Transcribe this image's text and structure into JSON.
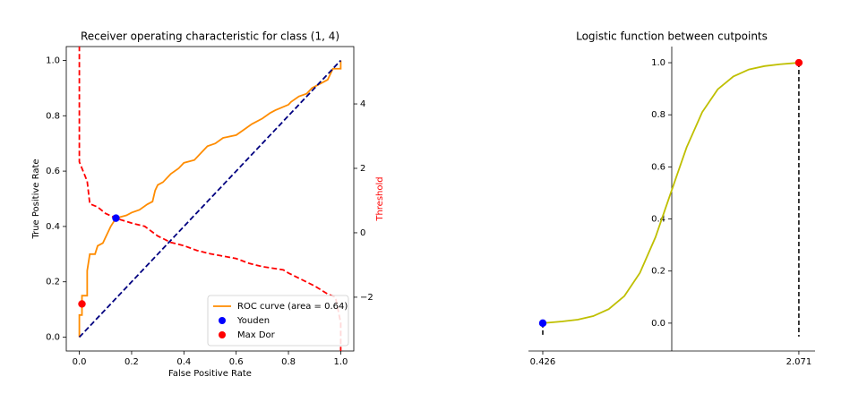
{
  "chart_data": [
    {
      "type": "line",
      "title": "Receiver operating characteristic for class (1, 4)",
      "xlabel": "False Positive Rate",
      "ylabel": "True Positive Rate",
      "y2label": "Threshold",
      "y2label_color": "#ff0000",
      "xlim": [
        -0.05,
        1.05
      ],
      "ylim": [
        -0.05,
        1.05
      ],
      "y2lim": [
        -3.67,
        5.78
      ],
      "xticks": [
        {
          "value": 0,
          "label": "0.0"
        },
        0.2,
        0.4,
        0.6,
        0.8,
        {
          "value": 1,
          "label": "1.0"
        }
      ],
      "yticks": [
        {
          "value": 0,
          "label": "0.0"
        },
        0.2,
        0.4,
        0.6,
        0.8,
        {
          "value": 1,
          "label": "1.0"
        }
      ],
      "y2ticks": [
        {
          "value": -2,
          "label": "−2"
        },
        0,
        2,
        4
      ],
      "legend": "lower right",
      "series": [
        {
          "name": "ROC curve (area = 0.64)",
          "color": "#ff8c00",
          "x": [
            0,
            0,
            0.01,
            0.01,
            0.03,
            0.03,
            0.04,
            0.06,
            0.07,
            0.09,
            0.1,
            0.11,
            0.12,
            0.14,
            0.18,
            0.2,
            0.23,
            0.26,
            0.28,
            0.29,
            0.3,
            0.32,
            0.35,
            0.38,
            0.4,
            0.44,
            0.46,
            0.49,
            0.52,
            0.55,
            0.6,
            0.63,
            0.66,
            0.7,
            0.73,
            0.75,
            0.8,
            0.81,
            0.84,
            0.87,
            0.89,
            0.93,
            0.95,
            0.97,
            1,
            1
          ],
          "values": [
            0,
            0.08,
            0.08,
            0.15,
            0.15,
            0.24,
            0.3,
            0.3,
            0.33,
            0.34,
            0.36,
            0.38,
            0.4,
            0.43,
            0.44,
            0.45,
            0.46,
            0.48,
            0.49,
            0.53,
            0.55,
            0.56,
            0.59,
            0.61,
            0.63,
            0.64,
            0.66,
            0.69,
            0.7,
            0.72,
            0.73,
            0.75,
            0.77,
            0.79,
            0.81,
            0.82,
            0.84,
            0.85,
            0.87,
            0.88,
            0.9,
            0.92,
            0.93,
            0.97,
            0.97,
            1
          ]
        },
        {
          "color": "#000080",
          "dashed": true,
          "x": [
            0,
            1
          ],
          "values": [
            0,
            1
          ]
        },
        {
          "color": "#ff0000",
          "dashed": true,
          "axis": "y2",
          "x": [
            0,
            0,
            0.01,
            0.03,
            0.04,
            0.07,
            0.1,
            0.14,
            0.2,
            0.25,
            0.3,
            0.35,
            0.4,
            0.45,
            0.5,
            0.6,
            0.65,
            0.7,
            0.78,
            0.8,
            0.85,
            0.9,
            0.95,
            0.98,
            1,
            1
          ],
          "values": [
            5.8,
            2.2,
            2,
            1.6,
            0.9,
            0.8,
            0.6,
            0.45,
            0.3,
            0.2,
            -0.1,
            -0.3,
            -0.4,
            -0.55,
            -0.65,
            -0.8,
            -0.95,
            -1.05,
            -1.15,
            -1.25,
            -1.45,
            -1.65,
            -1.9,
            -2,
            -2.8,
            -3.7
          ]
        },
        {
          "name": "Youden",
          "color": "#0000ff",
          "kind": "scatter",
          "x": [
            0.14
          ],
          "values": [
            0.43
          ]
        },
        {
          "name": "Max Dor",
          "color": "#ff0000",
          "kind": "scatter",
          "x": [
            0.01
          ],
          "values": [
            0.12
          ]
        }
      ]
    },
    {
      "type": "line",
      "title": "Logistic function between cutpoints",
      "xlim": [
        0.334,
        2.175
      ],
      "ylim": [
        -0.107,
        1.062
      ],
      "xticks": [
        0.426,
        2.071
      ],
      "yticks": [
        {
          "value": 0,
          "label": "0.0"
        },
        0.2,
        0.4,
        0.6,
        0.8,
        {
          "value": 1,
          "label": "1.0"
        }
      ],
      "series": [
        {
          "color": "#bfbf00",
          "x": [
            0.426,
            0.55,
            0.65,
            0.75,
            0.85,
            0.95,
            1.05,
            1.15,
            1.25,
            1.35,
            1.45,
            1.55,
            1.65,
            1.75,
            1.85,
            1.95,
            2.071
          ],
          "values": [
            0,
            0.0065,
            0.0133,
            0.0269,
            0.054,
            0.104,
            0.193,
            0.33,
            0.503,
            0.675,
            0.81,
            0.898,
            0.947,
            0.974,
            0.987,
            0.994,
            1
          ]
        },
        {
          "color": "#0000ff",
          "kind": "scatter",
          "stem": true,
          "x": [
            0.426
          ],
          "values": [
            0
          ]
        },
        {
          "color": "#ff0000",
          "kind": "scatter",
          "stem": true,
          "x": [
            2.071
          ],
          "values": [
            1
          ]
        }
      ]
    }
  ]
}
